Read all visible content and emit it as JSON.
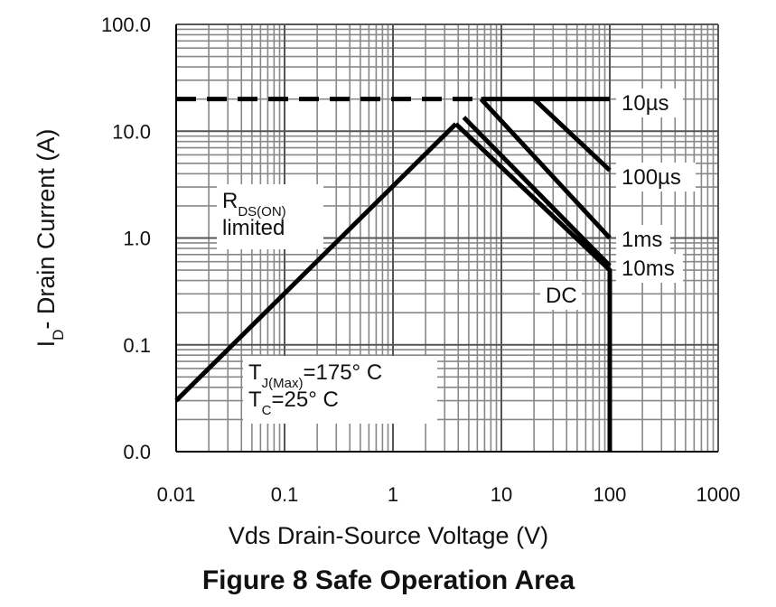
{
  "chart_data": {
    "type": "line",
    "title": "Figure 8 Safe Operation Area",
    "x_label": "Vds Drain-Source Voltage (V)",
    "y_label": [
      {
        "text": "I"
      },
      {
        "text": "D",
        "sub": true
      },
      {
        "text": "- Drain Current (A)"
      }
    ],
    "log_x": true,
    "log_y": true,
    "grid": true,
    "xlim": [
      0.01,
      1000
    ],
    "ylim": [
      0.01,
      100
    ],
    "xticks": [
      0.01,
      0.1,
      1,
      10,
      100,
      1000
    ],
    "yticks": [
      {
        "value": 0.01,
        "label": "0.0"
      },
      {
        "value": 0.1,
        "label": "0.1"
      },
      {
        "value": 1,
        "label": "1.0"
      },
      {
        "value": 10,
        "label": "10.0"
      },
      {
        "value": 100,
        "label": "100.0"
      }
    ],
    "series": [
      {
        "color": "#000000",
        "dashed": true,
        "x": [
          0.01,
          6.5
        ],
        "values": [
          20,
          20
        ]
      },
      {
        "color": "#000000",
        "x": [
          0.01,
          3.8
        ],
        "values": [
          0.03,
          11.7
        ]
      },
      {
        "name": "10µs",
        "color": "#000000",
        "x": [
          6.5,
          100
        ],
        "values": [
          20,
          20
        ]
      },
      {
        "name": "100µs",
        "color": "#000000",
        "x": [
          20,
          100
        ],
        "values": [
          20,
          4.3
        ]
      },
      {
        "name": "1ms",
        "color": "#000000",
        "x": [
          6.5,
          100
        ],
        "values": [
          20,
          1.0
        ]
      },
      {
        "name": "10ms",
        "color": "#000000",
        "x": [
          4.5,
          100
        ],
        "values": [
          13.5,
          0.55
        ]
      },
      {
        "name": "DC",
        "color": "#000000",
        "x": [
          3.8,
          100,
          100
        ],
        "values": [
          11.7,
          0.5,
          0.01
        ]
      }
    ],
    "annotations": [
      {
        "lines": [
          [
            {
              "text": "R"
            },
            {
              "text": "DS(ON)",
              "sub": true
            }
          ],
          [
            {
              "text": "limited"
            }
          ]
        ]
      },
      {
        "lines": [
          [
            {
              "text": "T"
            },
            {
              "text": "J(Max)",
              "sub": true
            },
            {
              "text": "=175° C"
            }
          ],
          [
            {
              "text": "T"
            },
            {
              "text": "C",
              "sub": true
            },
            {
              "text": "=25° C"
            }
          ]
        ]
      }
    ]
  }
}
